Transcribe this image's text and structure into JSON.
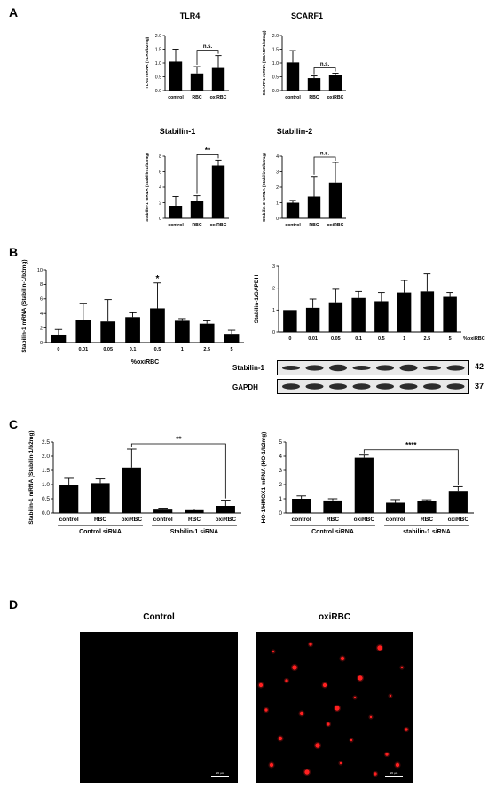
{
  "panels": {
    "A": "A",
    "B": "B",
    "C": "C",
    "D": "D"
  },
  "chart_data": [
    {
      "id": "a1",
      "type": "bar",
      "title": "TLR4",
      "ylabel": "TLR4 mRNA (TLR4/b2mg)",
      "categories": [
        "control",
        "RBC",
        "oxiRBC"
      ],
      "values": [
        1.05,
        0.62,
        0.82
      ],
      "errors": [
        0.45,
        0.25,
        0.45
      ],
      "ylim": [
        0,
        2.0
      ],
      "yticks": [
        "0.0",
        "0.5",
        "1.0",
        "1.5",
        "2.0"
      ],
      "annotation": {
        "text": "n.s.",
        "from": 1,
        "to": 2
      }
    },
    {
      "id": "a2",
      "type": "bar",
      "title": "SCARF1",
      "ylabel": "SCARF1 mRNA (SCARF1/b2mg)",
      "categories": [
        "control",
        "RBC",
        "oxiRBC"
      ],
      "values": [
        1.02,
        0.45,
        0.58
      ],
      "errors": [
        0.43,
        0.08,
        0.05
      ],
      "ylim": [
        0,
        2.0
      ],
      "yticks": [
        "0.0",
        "0.5",
        "1.0",
        "1.5",
        "2.0"
      ],
      "annotation": {
        "text": "n.s.",
        "from": 1,
        "to": 2
      }
    },
    {
      "id": "a3",
      "type": "bar",
      "title": "Stabilin-1",
      "ylabel": "Stabilin-1 mRNA (Stabilin-1/b2mg)",
      "categories": [
        "control",
        "RBC",
        "oxiRBC"
      ],
      "values": [
        1.6,
        2.2,
        6.8
      ],
      "errors": [
        1.2,
        0.7,
        0.7
      ],
      "ylim": [
        0,
        8
      ],
      "yticks": [
        "0",
        "2",
        "4",
        "6",
        "8"
      ],
      "annotation": {
        "text": "**",
        "from": 1,
        "to": 2
      }
    },
    {
      "id": "a4",
      "type": "bar",
      "title": "Stabilin-2",
      "ylabel": "Stabilin-2 mRNA (Stabilin-2/b2mg)",
      "categories": [
        "control",
        "RBC",
        "oxiRBC"
      ],
      "values": [
        1.0,
        1.4,
        2.3
      ],
      "errors": [
        0.15,
        1.3,
        1.3
      ],
      "ylim": [
        0,
        4
      ],
      "yticks": [
        "0",
        "1",
        "2",
        "3",
        "4"
      ],
      "annotation": {
        "text": "n.s.",
        "from": 1,
        "to": 2
      }
    },
    {
      "id": "b1",
      "type": "bar",
      "title": "",
      "ylabel": "Stabilin-1 mRNA (Stabilin-1/b2mg)",
      "xlabel": "%oxiRBC",
      "categories": [
        "0",
        "0.01",
        "0.05",
        "0.1",
        "0.5",
        "1",
        "2.5",
        "5"
      ],
      "values": [
        1.1,
        3.1,
        2.9,
        3.5,
        4.7,
        3.0,
        2.6,
        1.2
      ],
      "errors": [
        0.7,
        2.3,
        3.0,
        0.6,
        3.5,
        0.3,
        0.4,
        0.5
      ],
      "ylim": [
        0,
        10
      ],
      "yticks": [
        "0",
        "2",
        "4",
        "6",
        "8",
        "10"
      ],
      "star": {
        "text": "*",
        "index": 4
      }
    },
    {
      "id": "b2",
      "type": "bar",
      "title": "",
      "ylabel": "Stabilin-1/GAPDH",
      "xlabel": "%oxiRBC",
      "categories": [
        "0",
        "0.01",
        "0.05",
        "0.1",
        "0.5",
        "1",
        "2.5",
        "5"
      ],
      "values": [
        1.0,
        1.1,
        1.35,
        1.55,
        1.4,
        1.8,
        1.85,
        1.6
      ],
      "errors": [
        0.0,
        0.4,
        0.6,
        0.3,
        0.4,
        0.55,
        0.8,
        0.2
      ],
      "ylim": [
        0,
        3
      ],
      "yticks": [
        "0",
        "1",
        "2",
        "3"
      ]
    },
    {
      "id": "c1",
      "type": "bar",
      "title": "",
      "ylabel": "Stabilin-1 mRNA (Stabilin-1/b2mg)",
      "categories": [
        "control",
        "RBC",
        "oxiRBC",
        "control",
        "RBC",
        "oxiRBC"
      ],
      "values": [
        1.0,
        1.05,
        1.6,
        0.12,
        0.1,
        0.25
      ],
      "errors": [
        0.22,
        0.15,
        0.65,
        0.05,
        0.04,
        0.2
      ],
      "ylim": [
        0,
        2.5
      ],
      "yticks": [
        "0.0",
        "0.5",
        "1.0",
        "1.5",
        "2.0",
        "2.5"
      ],
      "groups": [
        "Control siRNA",
        "Stabilin-1 siRNA"
      ],
      "annotation": {
        "text": "**",
        "from": 2,
        "to": 5
      }
    },
    {
      "id": "c2",
      "type": "bar",
      "title": "",
      "ylabel": "HO-1/HMOX1 mRNA (HO-1/b2mg)",
      "categories": [
        "control",
        "RBC",
        "oxiRBC",
        "control",
        "RBC",
        "oxiRBC"
      ],
      "values": [
        1.0,
        0.88,
        3.9,
        0.72,
        0.85,
        1.55
      ],
      "errors": [
        0.2,
        0.12,
        0.18,
        0.22,
        0.08,
        0.3
      ],
      "ylim": [
        0,
        5
      ],
      "yticks": [
        "0",
        "1",
        "2",
        "3",
        "4",
        "5"
      ],
      "groups": [
        "Control siRNA",
        "stabilin-1 siRNA"
      ],
      "annotation": {
        "text": "****",
        "from": 2,
        "to": 5
      }
    }
  ],
  "blot": {
    "label_prefix": "%oxiRBC",
    "rows": [
      {
        "name": "Stabilin-1",
        "kda": "42"
      },
      {
        "name": "GAPDH",
        "kda": "37"
      }
    ]
  },
  "micrographs": {
    "control_title": "Control",
    "oxirbc_title": "oxiRBC",
    "scalebar_label": "20 µm",
    "dot_color": "#ff2020"
  }
}
